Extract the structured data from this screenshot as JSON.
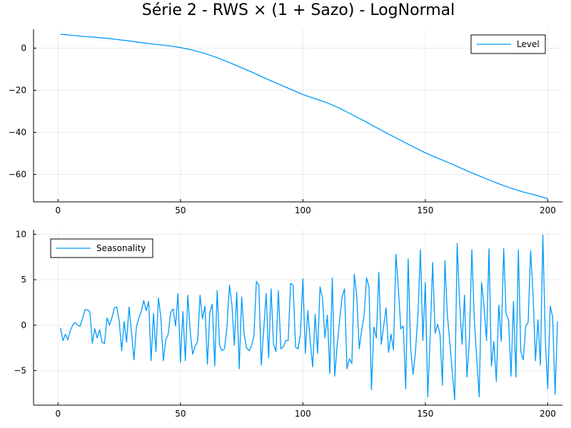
{
  "title": "Série 2 - RWS × (1 + Sazo) - LogNormal",
  "colors": {
    "series": "#009af9",
    "axis": "#000000"
  },
  "chart_data": [
    {
      "type": "line",
      "legend_position": "top-right",
      "grid": true,
      "xlim": [
        1,
        200
      ],
      "ylim": [
        -73,
        9
      ],
      "xticks": [
        0,
        50,
        100,
        150,
        200
      ],
      "yticks": [
        0,
        -20,
        -40,
        -60
      ],
      "series": [
        {
          "name": "Level",
          "points": [
            [
              1,
              6.6
            ],
            [
              5,
              6.2
            ],
            [
              10,
              5.6
            ],
            [
              15,
              5.2
            ],
            [
              20,
              4.7
            ],
            [
              25,
              4.0
            ],
            [
              30,
              3.3
            ],
            [
              35,
              2.5
            ],
            [
              40,
              1.8
            ],
            [
              45,
              1.2
            ],
            [
              50,
              0.3
            ],
            [
              55,
              -0.9
            ],
            [
              60,
              -2.5
            ],
            [
              65,
              -4.5
            ],
            [
              70,
              -6.8
            ],
            [
              75,
              -9.3
            ],
            [
              80,
              -11.8
            ],
            [
              85,
              -14.5
            ],
            [
              90,
              -17.0
            ],
            [
              95,
              -19.5
            ],
            [
              100,
              -22.0
            ],
            [
              105,
              -24.0
            ],
            [
              110,
              -26.0
            ],
            [
              115,
              -28.5
            ],
            [
              120,
              -31.5
            ],
            [
              125,
              -34.5
            ],
            [
              130,
              -37.7
            ],
            [
              135,
              -40.8
            ],
            [
              140,
              -43.8
            ],
            [
              145,
              -46.8
            ],
            [
              150,
              -49.7
            ],
            [
              155,
              -52.2
            ],
            [
              160,
              -54.6
            ],
            [
              165,
              -57.2
            ],
            [
              170,
              -59.7
            ],
            [
              175,
              -62.1
            ],
            [
              180,
              -64.4
            ],
            [
              185,
              -66.5
            ],
            [
              190,
              -68.3
            ],
            [
              195,
              -69.8
            ],
            [
              200,
              -71.4
            ]
          ]
        }
      ]
    },
    {
      "type": "line",
      "legend_position": "top-left",
      "grid": true,
      "xlim": [
        1,
        200
      ],
      "ylim": [
        -8.8,
        10.5
      ],
      "xticks": [
        0,
        50,
        100,
        150,
        200
      ],
      "yticks": [
        10,
        5,
        0,
        -5
      ],
      "series": [
        {
          "name": "Seasonality",
          "values": [
            -0.3,
            -1.7,
            -1.0,
            -1.6,
            -0.6,
            0.0,
            0.3,
            0.0,
            -0.1,
            0.7,
            1.7,
            1.7,
            1.5,
            -2.0,
            -0.4,
            -1.4,
            -0.5,
            -1.9,
            -2.0,
            0.8,
            0.0,
            0.8,
            1.9,
            2.0,
            0.4,
            -2.8,
            0.4,
            -1.9,
            2.0,
            -0.8,
            -3.8,
            -0.2,
            0.8,
            1.5,
            2.7,
            1.6,
            2.6,
            -3.9,
            1.3,
            -2.9,
            3.0,
            0.8,
            -3.9,
            -1.6,
            -1.0,
            1.4,
            1.8,
            -0.1,
            3.5,
            -4.1,
            1.5,
            -3.9,
            3.3,
            -0.8,
            -3.2,
            -2.3,
            -1.8,
            3.3,
            0.7,
            2.1,
            -4.3,
            1.4,
            2.3,
            -4.5,
            3.8,
            -2.3,
            -2.8,
            -2.6,
            -0.2,
            4.4,
            2.3,
            -2.2,
            3.6,
            -4.8,
            3.1,
            -1.0,
            -2.5,
            -2.8,
            -2.3,
            -1.2,
            4.8,
            4.4,
            -4.4,
            -0.5,
            3.5,
            -3.6,
            4.0,
            -2.1,
            -2.9,
            3.8,
            -2.6,
            -2.4,
            -1.7,
            -1.7,
            4.6,
            4.4,
            -2.4,
            -2.6,
            -1.0,
            5.1,
            -3.1,
            1.6,
            -1.8,
            -4.6,
            1.2,
            -3.1,
            4.2,
            3.0,
            -1.4,
            1.1,
            -5.3,
            5.2,
            -5.6,
            -2.2,
            0.5,
            3.1,
            4.0,
            -4.8,
            -3.7,
            -4.2,
            5.6,
            3.2,
            -2.6,
            -0.6,
            1.1,
            5.2,
            4.2,
            -7.1,
            -0.2,
            -1.4,
            5.8,
            -2.1,
            -0.1,
            1.9,
            -3.0,
            -1.0,
            -2.7,
            7.8,
            4.0,
            -0.4,
            -0.1,
            -7.0,
            7.3,
            -2.5,
            -5.4,
            -2.8,
            1.2,
            8.3,
            -1.7,
            4.7,
            -7.9,
            -1.1,
            6.9,
            -0.9,
            0.1,
            -1.0,
            -6.6,
            7.1,
            1.1,
            -1.9,
            -5.1,
            -8.2,
            9.0,
            2.5,
            -2.1,
            3.3,
            -5.7,
            -1.6,
            8.3,
            0.7,
            -3.7,
            -7.9,
            4.7,
            2.0,
            -1.7,
            8.4,
            -4.5,
            -1.8,
            -6.2,
            2.2,
            -1.8,
            8.4,
            1.2,
            0.6,
            -5.6,
            2.6,
            -5.7,
            8.3,
            -2.9,
            -3.8,
            -0.1,
            0.3,
            8.2,
            3.4,
            -3.9,
            0.6,
            -4.4,
            9.9,
            -1.5,
            -7.0,
            2.1,
            0.9,
            -7.6,
            0.4
          ]
        }
      ]
    }
  ]
}
